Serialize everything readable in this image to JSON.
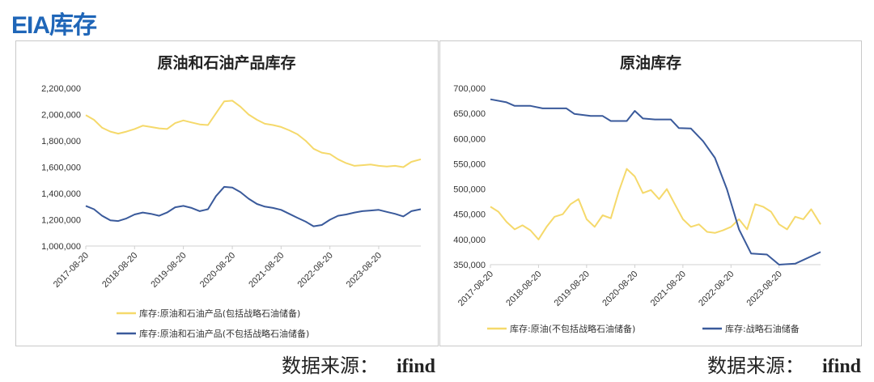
{
  "page": {
    "title": "EIA库存",
    "source_label": "数据来源：",
    "source_value": "ifind"
  },
  "colors": {
    "title_blue": "#1f66b8",
    "series_yellow": "#f5d96b",
    "series_blue": "#3a5a9b"
  },
  "chart_data": [
    {
      "type": "line",
      "title": "原油和石油产品库存",
      "x_ticks": [
        "2017-08-20",
        "2018-08-20",
        "2019-08-20",
        "2020-08-20",
        "2021-08-20",
        "2022-08-20",
        "2023-08-20"
      ],
      "x_range": [
        "2017-08-20",
        "2024-06-30"
      ],
      "ylim": [
        1000000,
        2200000
      ],
      "y_ticks": [
        "1,000,000",
        "1,200,000",
        "1,400,000",
        "1,600,000",
        "1,800,000",
        "2,000,000",
        "2,200,000"
      ],
      "y_tick_values": [
        1000000,
        1200000,
        1400000,
        1600000,
        1800000,
        2000000,
        2200000
      ],
      "grid": false,
      "legend_position": "bottom",
      "series": [
        {
          "name": "库存:原油和石油产品(包括战略石油储备)",
          "color": "#f5d96b",
          "points": [
            [
              "2017-08-20",
              1995000
            ],
            [
              "2017-10-20",
              1960000
            ],
            [
              "2017-12-20",
              1900000
            ],
            [
              "2018-02-20",
              1870000
            ],
            [
              "2018-04-20",
              1855000
            ],
            [
              "2018-06-20",
              1870000
            ],
            [
              "2018-08-20",
              1890000
            ],
            [
              "2018-10-20",
              1915000
            ],
            [
              "2018-12-20",
              1905000
            ],
            [
              "2019-02-20",
              1895000
            ],
            [
              "2019-04-20",
              1890000
            ],
            [
              "2019-06-20",
              1935000
            ],
            [
              "2019-08-20",
              1955000
            ],
            [
              "2019-10-20",
              1940000
            ],
            [
              "2019-12-20",
              1925000
            ],
            [
              "2020-02-20",
              1920000
            ],
            [
              "2020-04-20",
              2010000
            ],
            [
              "2020-06-20",
              2100000
            ],
            [
              "2020-08-20",
              2105000
            ],
            [
              "2020-10-20",
              2060000
            ],
            [
              "2020-12-20",
              2000000
            ],
            [
              "2021-02-20",
              1960000
            ],
            [
              "2021-04-20",
              1930000
            ],
            [
              "2021-06-20",
              1920000
            ],
            [
              "2021-08-20",
              1905000
            ],
            [
              "2021-10-20",
              1880000
            ],
            [
              "2021-12-20",
              1850000
            ],
            [
              "2022-02-20",
              1800000
            ],
            [
              "2022-04-20",
              1740000
            ],
            [
              "2022-06-20",
              1710000
            ],
            [
              "2022-08-20",
              1700000
            ],
            [
              "2022-10-20",
              1660000
            ],
            [
              "2022-12-20",
              1630000
            ],
            [
              "2023-02-20",
              1610000
            ],
            [
              "2023-04-20",
              1615000
            ],
            [
              "2023-06-20",
              1620000
            ],
            [
              "2023-08-20",
              1610000
            ],
            [
              "2023-10-20",
              1605000
            ],
            [
              "2023-12-20",
              1610000
            ],
            [
              "2024-02-20",
              1600000
            ],
            [
              "2024-04-20",
              1640000
            ],
            [
              "2024-06-30",
              1660000
            ]
          ]
        },
        {
          "name": "库存:原油和石油产品(不包括战略石油储备)",
          "color": "#3a5a9b",
          "points": [
            [
              "2017-08-20",
              1305000
            ],
            [
              "2017-10-20",
              1280000
            ],
            [
              "2017-12-20",
              1230000
            ],
            [
              "2018-02-20",
              1195000
            ],
            [
              "2018-04-20",
              1190000
            ],
            [
              "2018-06-20",
              1210000
            ],
            [
              "2018-08-20",
              1240000
            ],
            [
              "2018-10-20",
              1255000
            ],
            [
              "2018-12-20",
              1245000
            ],
            [
              "2019-02-20",
              1230000
            ],
            [
              "2019-04-20",
              1255000
            ],
            [
              "2019-06-20",
              1295000
            ],
            [
              "2019-08-20",
              1305000
            ],
            [
              "2019-10-20",
              1290000
            ],
            [
              "2019-12-20",
              1265000
            ],
            [
              "2020-02-20",
              1280000
            ],
            [
              "2020-04-20",
              1380000
            ],
            [
              "2020-06-20",
              1450000
            ],
            [
              "2020-08-20",
              1445000
            ],
            [
              "2020-10-20",
              1410000
            ],
            [
              "2020-12-20",
              1360000
            ],
            [
              "2021-02-20",
              1320000
            ],
            [
              "2021-04-20",
              1300000
            ],
            [
              "2021-06-20",
              1290000
            ],
            [
              "2021-08-20",
              1275000
            ],
            [
              "2021-10-20",
              1245000
            ],
            [
              "2021-12-20",
              1215000
            ],
            [
              "2022-02-20",
              1185000
            ],
            [
              "2022-04-20",
              1150000
            ],
            [
              "2022-06-20",
              1160000
            ],
            [
              "2022-08-20",
              1200000
            ],
            [
              "2022-10-20",
              1230000
            ],
            [
              "2022-12-20",
              1240000
            ],
            [
              "2023-02-20",
              1255000
            ],
            [
              "2023-04-20",
              1265000
            ],
            [
              "2023-06-20",
              1270000
            ],
            [
              "2023-08-20",
              1275000
            ],
            [
              "2023-10-20",
              1260000
            ],
            [
              "2023-12-20",
              1245000
            ],
            [
              "2024-02-20",
              1225000
            ],
            [
              "2024-04-20",
              1265000
            ],
            [
              "2024-06-30",
              1280000
            ]
          ]
        }
      ]
    },
    {
      "type": "line",
      "title": "原油库存",
      "x_ticks": [
        "2017-08-20",
        "2018-08-20",
        "2019-08-20",
        "2020-08-20",
        "2021-08-20",
        "2022-08-20",
        "2023-08-20"
      ],
      "x_range": [
        "2017-08-20",
        "2024-06-30"
      ],
      "ylim": [
        350000,
        700000
      ],
      "y_ticks": [
        "350,000",
        "400,000",
        "450,000",
        "500,000",
        "550,000",
        "600,000",
        "650,000",
        "700,000"
      ],
      "y_tick_values": [
        350000,
        400000,
        450000,
        500000,
        550000,
        600000,
        650000,
        700000
      ],
      "grid": false,
      "legend_position": "bottom",
      "series": [
        {
          "name": "库存:原油(不包括战略石油储备)",
          "color": "#f5d96b",
          "points": [
            [
              "2017-08-20",
              465000
            ],
            [
              "2017-10-20",
              455000
            ],
            [
              "2017-12-20",
              435000
            ],
            [
              "2018-02-20",
              420000
            ],
            [
              "2018-04-20",
              428000
            ],
            [
              "2018-06-20",
              418000
            ],
            [
              "2018-08-20",
              400000
            ],
            [
              "2018-10-20",
              425000
            ],
            [
              "2018-12-20",
              445000
            ],
            [
              "2019-02-20",
              450000
            ],
            [
              "2019-04-20",
              470000
            ],
            [
              "2019-06-20",
              480000
            ],
            [
              "2019-08-20",
              440000
            ],
            [
              "2019-10-20",
              425000
            ],
            [
              "2019-12-20",
              448000
            ],
            [
              "2020-02-20",
              442000
            ],
            [
              "2020-04-20",
              495000
            ],
            [
              "2020-06-20",
              540000
            ],
            [
              "2020-08-20",
              525000
            ],
            [
              "2020-10-20",
              492000
            ],
            [
              "2020-12-20",
              498000
            ],
            [
              "2021-02-20",
              480000
            ],
            [
              "2021-04-20",
              500000
            ],
            [
              "2021-06-20",
              470000
            ],
            [
              "2021-08-20",
              440000
            ],
            [
              "2021-10-20",
              425000
            ],
            [
              "2021-12-20",
              430000
            ],
            [
              "2022-02-20",
              415000
            ],
            [
              "2022-04-20",
              413000
            ],
            [
              "2022-06-20",
              418000
            ],
            [
              "2022-08-20",
              425000
            ],
            [
              "2022-10-20",
              440000
            ],
            [
              "2022-12-20",
              420000
            ],
            [
              "2023-02-20",
              470000
            ],
            [
              "2023-04-20",
              465000
            ],
            [
              "2023-06-20",
              455000
            ],
            [
              "2023-08-20",
              430000
            ],
            [
              "2023-10-20",
              420000
            ],
            [
              "2023-12-20",
              445000
            ],
            [
              "2024-02-20",
              440000
            ],
            [
              "2024-04-20",
              460000
            ],
            [
              "2024-06-30",
              430000
            ]
          ]
        },
        {
          "name": "库存:战略石油储备",
          "color": "#3a5a9b",
          "points": [
            [
              "2017-08-20",
              678000
            ],
            [
              "2017-12-20",
              672000
            ],
            [
              "2018-02-20",
              665000
            ],
            [
              "2018-06-20",
              665000
            ],
            [
              "2018-09-20",
              660000
            ],
            [
              "2019-03-20",
              660000
            ],
            [
              "2019-05-20",
              649000
            ],
            [
              "2019-09-20",
              645000
            ],
            [
              "2019-12-20",
              645000
            ],
            [
              "2020-02-20",
              635000
            ],
            [
              "2020-06-20",
              635000
            ],
            [
              "2020-08-20",
              655000
            ],
            [
              "2020-10-20",
              640000
            ],
            [
              "2021-01-20",
              638000
            ],
            [
              "2021-05-20",
              638000
            ],
            [
              "2021-07-20",
              621000
            ],
            [
              "2021-10-20",
              620000
            ],
            [
              "2022-01-20",
              595000
            ],
            [
              "2022-04-20",
              562000
            ],
            [
              "2022-07-20",
              500000
            ],
            [
              "2022-10-20",
              420000
            ],
            [
              "2023-01-20",
              372000
            ],
            [
              "2023-05-20",
              370000
            ],
            [
              "2023-08-20",
              350000
            ],
            [
              "2023-12-20",
              352000
            ],
            [
              "2024-06-30",
              375000
            ]
          ]
        }
      ]
    }
  ]
}
